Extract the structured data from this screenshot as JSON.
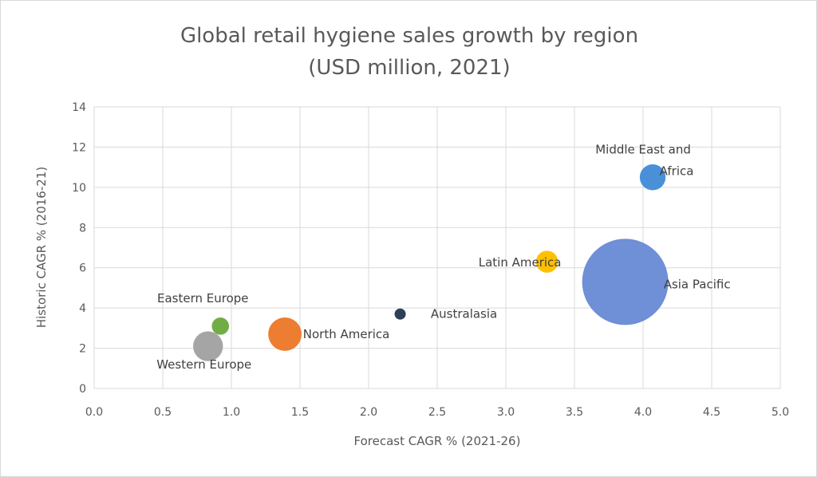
{
  "chart_data": {
    "type": "bubble",
    "title": [
      "Global retail hygiene sales growth by region",
      "(USD million, 2021)"
    ],
    "xlabel": "Forecast CAGR  % (2021-26)",
    "ylabel": "Historic CAGR % (2016-21)",
    "xlim": [
      0,
      5
    ],
    "ylim": [
      0,
      14
    ],
    "xticks": [
      "0.0",
      "0.5",
      "1.0",
      "1.5",
      "2.0",
      "2.5",
      "3.0",
      "3.5",
      "4.0",
      "4.5",
      "5.0"
    ],
    "yticks": [
      "0",
      "2",
      "4",
      "6",
      "8",
      "10",
      "12",
      "14"
    ],
    "grid": true,
    "legend": "none",
    "points": [
      {
        "name": "Middle East and Africa",
        "label_lines": [
          "Middle East and",
          "Africa"
        ],
        "x": 4.07,
        "y": 10.5,
        "size": 9,
        "color": "#4a90d9"
      },
      {
        "name": "Asia Pacific",
        "label_lines": [
          "Asia Pacific"
        ],
        "x": 3.87,
        "y": 5.3,
        "size": 100,
        "color": "#6f8fd6"
      },
      {
        "name": "Latin America",
        "label_lines": [
          "Latin America"
        ],
        "x": 3.3,
        "y": 6.3,
        "size": 6.5,
        "color": "#ffc000"
      },
      {
        "name": "Australasia",
        "label_lines": [
          "Australasia"
        ],
        "x": 2.23,
        "y": 3.7,
        "size": 0.8,
        "color": "#2e4057"
      },
      {
        "name": "North America",
        "label_lines": [
          "North America"
        ],
        "x": 1.39,
        "y": 2.7,
        "size": 15,
        "color": "#ed7d31"
      },
      {
        "name": "Eastern Europe",
        "label_lines": [
          "Eastern Europe"
        ],
        "x": 0.92,
        "y": 3.1,
        "size": 4,
        "color": "#70ad47"
      },
      {
        "name": "Western Europe",
        "label_lines": [
          "Western Europe"
        ],
        "x": 0.83,
        "y": 2.1,
        "size": 12,
        "color": "#a5a5a5"
      }
    ]
  }
}
